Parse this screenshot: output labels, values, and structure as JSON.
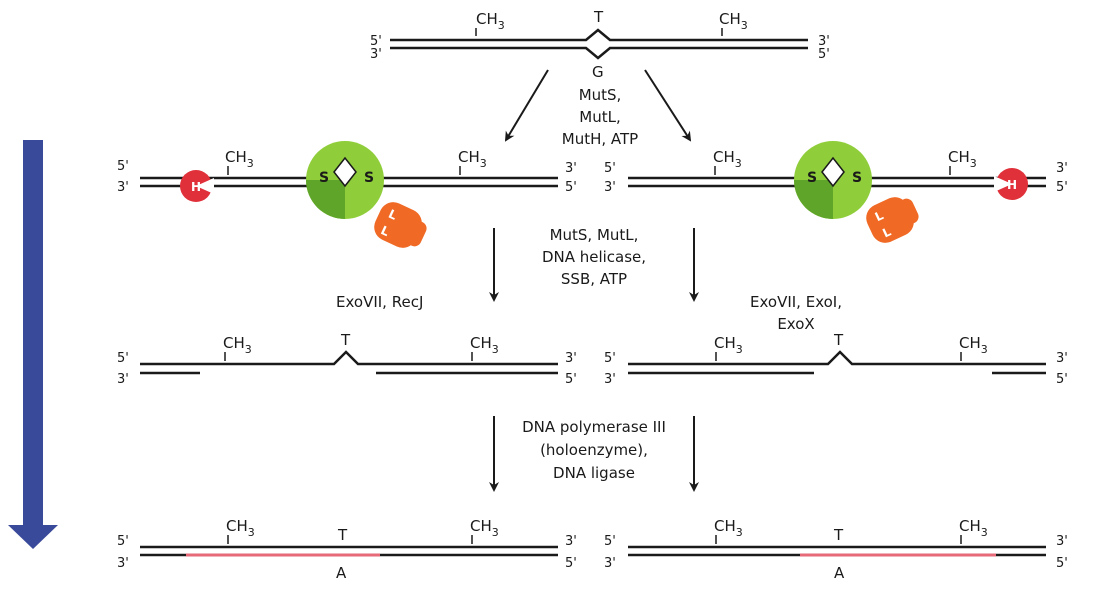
{
  "colors": {
    "arrow": "#3a4a9a",
    "strand": "#1a1a1a",
    "new_strand": "#e66a78",
    "muts_outer": "#8fce3a",
    "muts_inner": "#5fa52a",
    "mutl": "#f06a25",
    "muth": "#e0303a"
  },
  "ends": {
    "five": "5'",
    "three": "3'"
  },
  "methyl": {
    "ch": "CH",
    "sub": "3"
  },
  "bases": {
    "top": "T",
    "mismatch": "G",
    "repaired": "A"
  },
  "proteins": {
    "muth": "H",
    "muts": "S",
    "mutl": "L"
  },
  "steps": {
    "step1": [
      "MutS,",
      "MutL,",
      "MutH, ATP"
    ],
    "step2": [
      "MutS, MutL,",
      "DNA helicase,",
      "SSB, ATP"
    ],
    "step3_left": [
      "ExoVII, RecJ"
    ],
    "step3_right": [
      "ExoVII, ExoI,",
      "ExoX"
    ],
    "step4": [
      "DNA polymerase III",
      "(holoenzyme),",
      "DNA ligase"
    ]
  }
}
